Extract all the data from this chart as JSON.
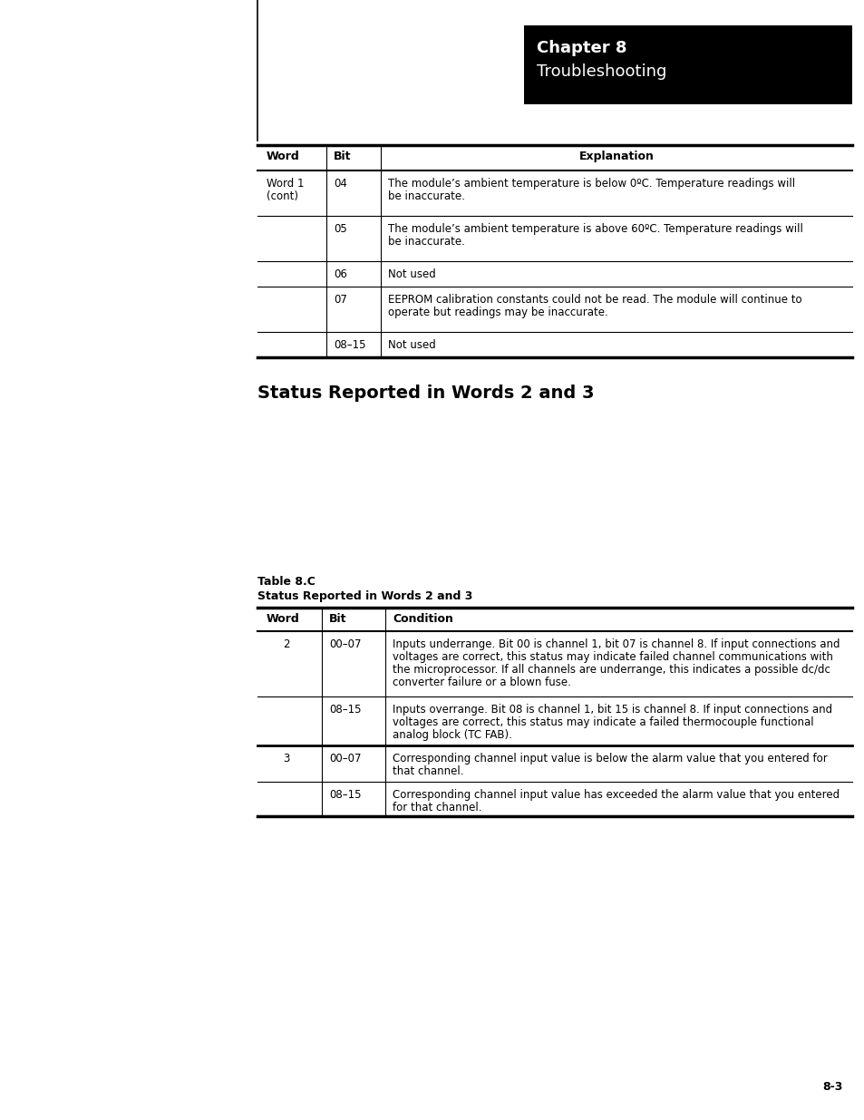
{
  "page_bg": "#ffffff",
  "chapter_box_color": "#000000",
  "chapter_line1": "Chapter 8",
  "chapter_line2": "Troubleshooting",
  "page_number": "8-3",
  "section_heading": "Status Reported in Words 2 and 3",
  "table_caption_line1": "Table 8.C",
  "table_caption_line2": "Status Reported in Words 2 and 3",
  "font_family": "Arial Narrow",
  "table1_rows": [
    {
      "word": "Word 1\n(cont)",
      "bit": "04",
      "text": "The module’s ambient temperature is below 0ºC. Temperature readings will\nbe inaccurate."
    },
    {
      "word": "",
      "bit": "05",
      "text": "The module’s ambient temperature is above 60ºC. Temperature readings will\nbe inaccurate."
    },
    {
      "word": "",
      "bit": "06",
      "text": "Not used"
    },
    {
      "word": "",
      "bit": "07",
      "text": "EEPROM calibration constants could not be read. The module will continue to\noperate but readings may be inaccurate."
    },
    {
      "word": "",
      "bit": "08–15",
      "text": "Not used"
    }
  ],
  "table2_rows": [
    {
      "word": "2",
      "bit": "00–07",
      "text": "Inputs underrange. Bit 00 is channel 1, bit 07 is channel 8. If input connections and\nvoltages are correct, this status may indicate failed channel communications with\nthe microprocessor. If all channels are underrange, this indicates a possible dc/dc\nconverter failure or a blown fuse.",
      "new_group": false
    },
    {
      "word": "",
      "bit": "08–15",
      "text": "Inputs overrange. Bit 08 is channel 1, bit 15 is channel 8. If input connections and\nvoltages are correct, this status may indicate a failed thermocouple functional\nanalog block (TC FAB).",
      "new_group": false
    },
    {
      "word": "3",
      "bit": "00–07",
      "text": "Corresponding channel input value is below the alarm value that you entered for\nthat channel.",
      "new_group": true
    },
    {
      "word": "",
      "bit": "08–15",
      "text": "Corresponding channel input value has exceeded the alarm value that you entered\nfor that channel.",
      "new_group": false
    }
  ]
}
